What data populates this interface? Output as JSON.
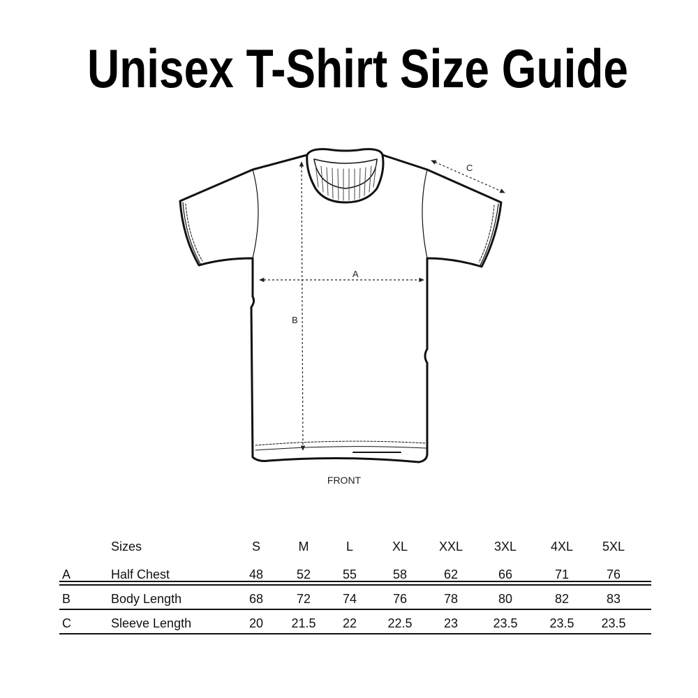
{
  "title": "Unisex T-Shirt Size Guide",
  "diagram": {
    "view_label": "FRONT",
    "measure_labels": {
      "A": "A",
      "B": "B",
      "C": "C"
    }
  },
  "table": {
    "header": {
      "label": "Sizes",
      "sizes": [
        "S",
        "M",
        "L",
        "XL",
        "XXL",
        "3XL",
        "4XL",
        "5XL"
      ]
    },
    "rows": [
      {
        "key": "A",
        "label": "Half Chest",
        "values": [
          "48",
          "52",
          "55",
          "58",
          "62",
          "66",
          "71",
          "76"
        ]
      },
      {
        "key": "B",
        "label": "Body Length",
        "values": [
          "68",
          "72",
          "74",
          "76",
          "78",
          "80",
          "82",
          "83"
        ]
      },
      {
        "key": "C",
        "label": "Sleeve Length",
        "values": [
          "20",
          "21.5",
          "22",
          "22.5",
          "23",
          "23.5",
          "23.5",
          "23.5"
        ]
      }
    ]
  }
}
